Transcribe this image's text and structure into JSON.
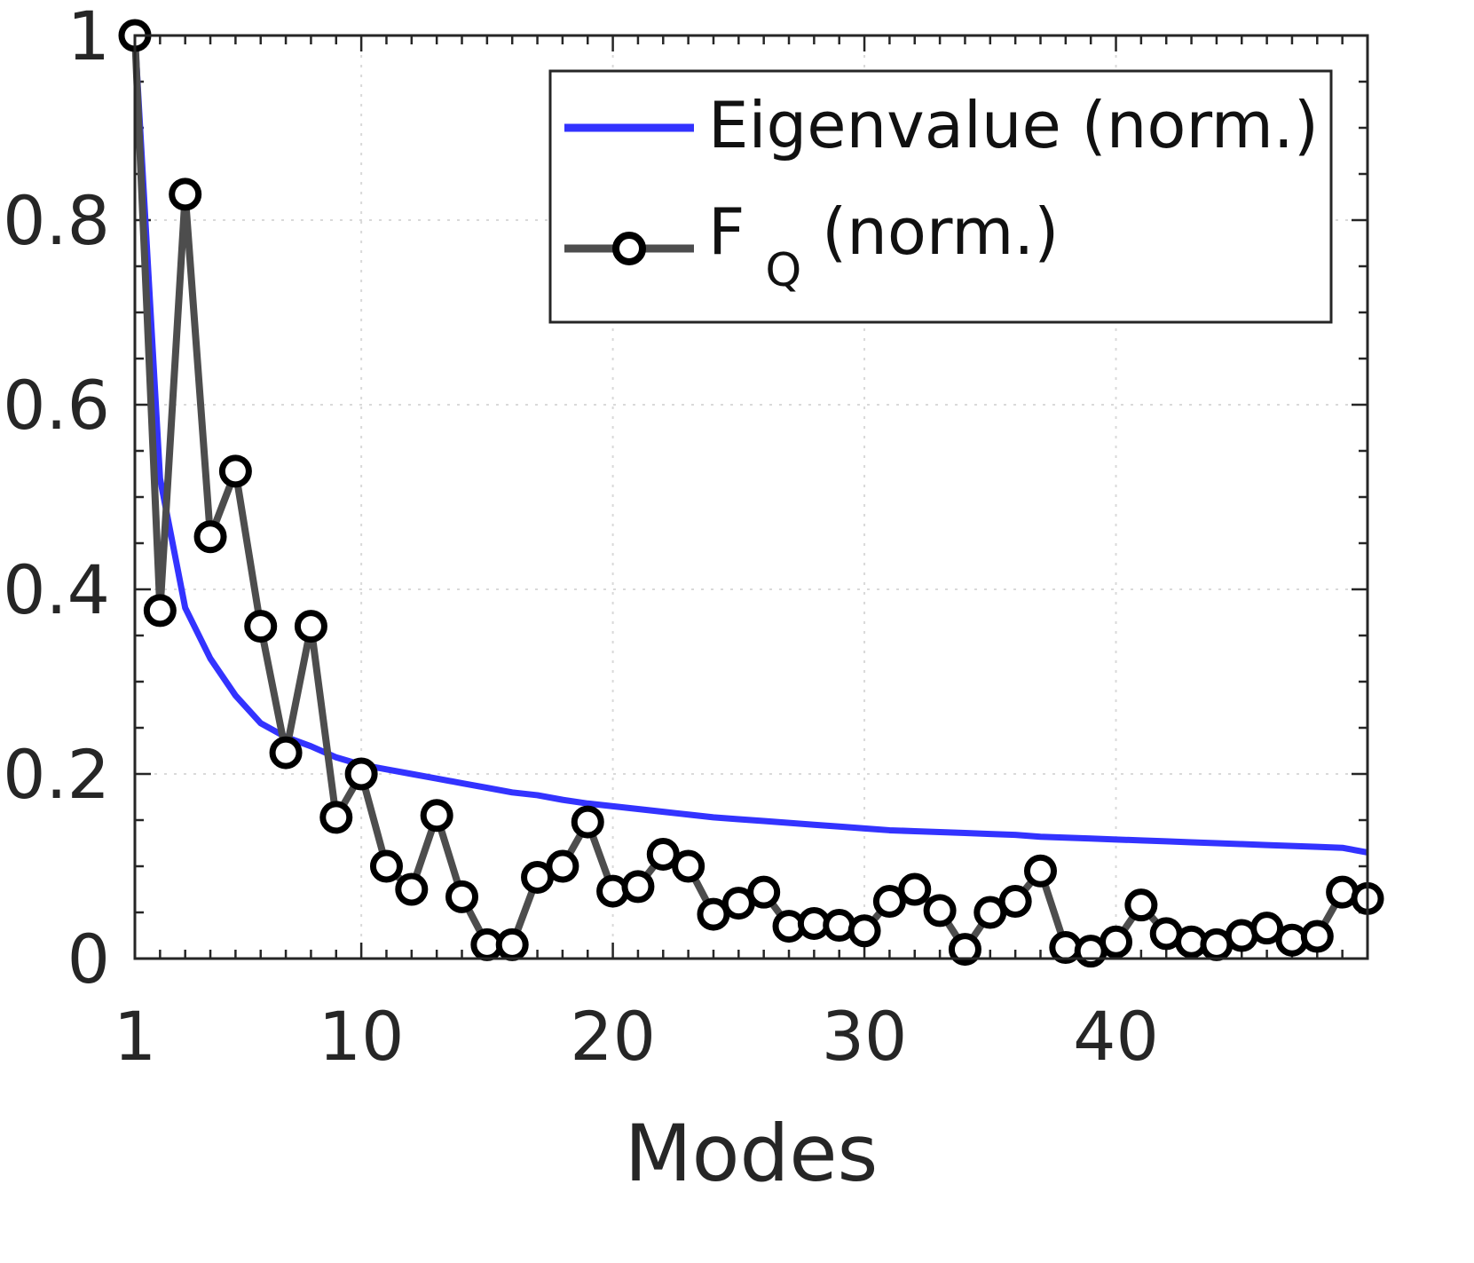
{
  "chart_data": {
    "type": "line",
    "title": "",
    "xlabel": "Modes",
    "ylabel": "",
    "xlim": [
      1,
      50
    ],
    "ylim": [
      0,
      1
    ],
    "x_ticks": [
      1,
      10,
      20,
      30,
      40
    ],
    "x_tick_labels": [
      "1",
      "10",
      "20",
      "30",
      "40"
    ],
    "y_ticks": [
      0,
      0.2,
      0.4,
      0.6,
      0.8,
      1
    ],
    "y_tick_labels": [
      "0",
      "0.2",
      "0.4",
      "0.6",
      "0.8",
      "1"
    ],
    "grid": true,
    "legend_position": "top-right",
    "x": [
      1,
      2,
      3,
      4,
      5,
      6,
      7,
      8,
      9,
      10,
      11,
      12,
      13,
      14,
      15,
      16,
      17,
      18,
      19,
      20,
      21,
      22,
      23,
      24,
      25,
      26,
      27,
      28,
      29,
      30,
      31,
      32,
      33,
      34,
      35,
      36,
      37,
      38,
      39,
      40,
      41,
      42,
      43,
      44,
      45,
      46,
      47,
      48,
      49,
      50
    ],
    "series": [
      {
        "name": "Eigenvalue (norm.)",
        "color": "#3333ff",
        "marker": "none",
        "values": [
          1.0,
          0.52,
          0.38,
          0.325,
          0.285,
          0.255,
          0.24,
          0.23,
          0.218,
          0.21,
          0.205,
          0.2,
          0.195,
          0.19,
          0.185,
          0.18,
          0.177,
          0.172,
          0.168,
          0.165,
          0.162,
          0.159,
          0.156,
          0.153,
          0.151,
          0.149,
          0.147,
          0.145,
          0.143,
          0.141,
          0.139,
          0.138,
          0.137,
          0.136,
          0.135,
          0.134,
          0.132,
          0.131,
          0.13,
          0.129,
          0.128,
          0.127,
          0.126,
          0.125,
          0.124,
          0.123,
          0.122,
          0.121,
          0.12,
          0.115
        ]
      },
      {
        "name": "F",
        "name_subscript": "Q",
        "name_suffix": " (norm.)",
        "color": "#4d4d4d",
        "marker": "circle",
        "values": [
          1.0,
          0.377,
          0.828,
          0.457,
          0.528,
          0.36,
          0.223,
          0.36,
          0.153,
          0.2,
          0.1,
          0.075,
          0.155,
          0.067,
          0.015,
          0.015,
          0.088,
          0.1,
          0.148,
          0.073,
          0.078,
          0.113,
          0.1,
          0.048,
          0.06,
          0.072,
          0.035,
          0.038,
          0.036,
          0.03,
          0.062,
          0.075,
          0.052,
          0.01,
          0.05,
          0.062,
          0.095,
          0.012,
          0.008,
          0.018,
          0.058,
          0.027,
          0.018,
          0.015,
          0.025,
          0.033,
          0.02,
          0.024,
          0.072,
          0.065
        ]
      }
    ]
  }
}
